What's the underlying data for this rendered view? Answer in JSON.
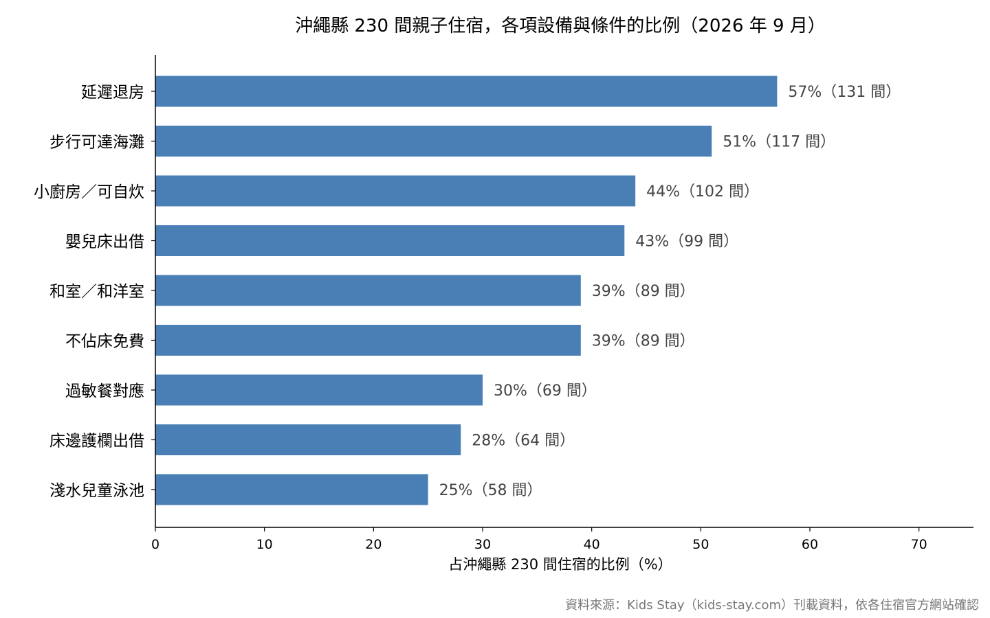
{
  "chart_data": {
    "type": "bar",
    "orientation": "horizontal",
    "title": "沖繩縣 230 間親子住宿，各項設備與條件的比例（2026 年 9 月）",
    "xlabel": "占沖繩縣 230 間住宿的比例（%）",
    "ylabel": "",
    "categories": [
      "延遲退房",
      "步行可達海灘",
      "小廚房／可自炊",
      "嬰兒床出借",
      "和室／和洋室",
      "不佔床免費",
      "過敏餐對應",
      "床邊護欄出借",
      "淺水兒童泳池"
    ],
    "values": [
      57,
      51,
      44,
      43,
      39,
      39,
      30,
      28,
      25
    ],
    "data_labels": [
      "57%（131 間）",
      "51%（117 間）",
      "44%（102 間）",
      "43%（99 間）",
      "39%（89 間）",
      "39%（89 間）",
      "30%（69 間）",
      "28%（64 間）",
      "25%（58 間）"
    ],
    "xlim": [
      0,
      75
    ],
    "xticks": [
      0,
      10,
      20,
      30,
      40,
      50,
      60,
      70
    ],
    "grid": false,
    "legend": "none",
    "bar_color": "#4a7fb5",
    "source_note": "資料來源：Kids Stay（kids-stay.com）刊載資料，依各住宿官方網站確認"
  }
}
